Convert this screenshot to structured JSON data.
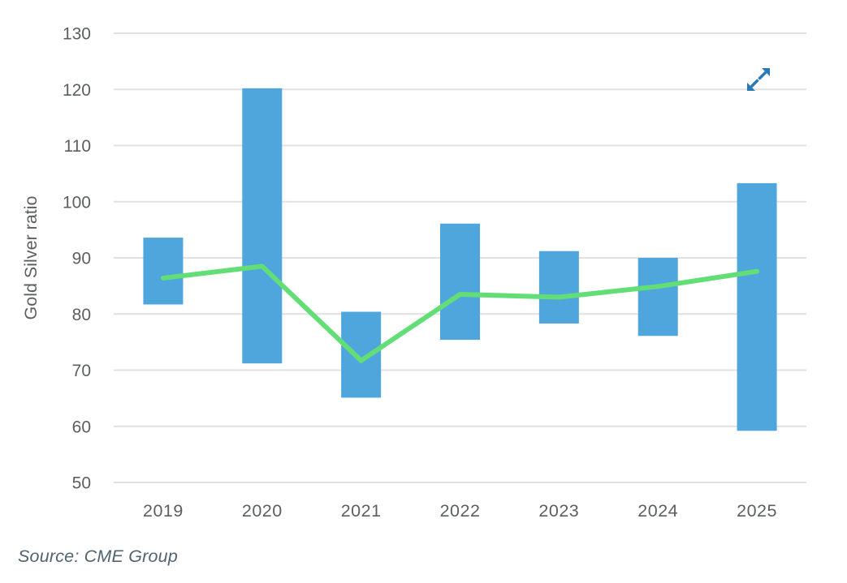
{
  "chart_data": {
    "type": "bar",
    "subtype": "yearly high-low range bars with average trend line",
    "categories": [
      "2019",
      "2020",
      "2021",
      "2022",
      "2023",
      "2024",
      "2025"
    ],
    "series": [
      {
        "name": "yearly-range",
        "type": "range-bar",
        "low": [
          81.7,
          71.2,
          65.1,
          75.4,
          78.3,
          76.1,
          59.2
        ],
        "high": [
          93.6,
          120.2,
          80.4,
          96.1,
          91.2,
          90.0,
          103.3
        ]
      },
      {
        "name": "average-line",
        "type": "line",
        "values": [
          86.4,
          88.5,
          71.7,
          83.5,
          83.0,
          84.9,
          87.6
        ]
      }
    ],
    "title": "",
    "xlabel": "",
    "ylabel": "Gold Silver ratio",
    "ylim": [
      50,
      130
    ],
    "yticks": [
      130,
      120,
      110,
      100,
      90,
      80,
      70,
      60,
      50
    ],
    "grid": "horizontal",
    "legend": "none"
  },
  "footer": {
    "source": "Source: CME Group"
  },
  "icons": {
    "expand": "expand-diagonal-arrows"
  },
  "colors": {
    "bar": "#4EA6DC",
    "line": "#63DE76",
    "grid": "#E1E1E1",
    "axis_text": "#5C5E60",
    "y_label_text": "#5C5E60",
    "source_text": "#50636F",
    "expand_icon": "#2979B8",
    "background": "#FFFFFF"
  }
}
